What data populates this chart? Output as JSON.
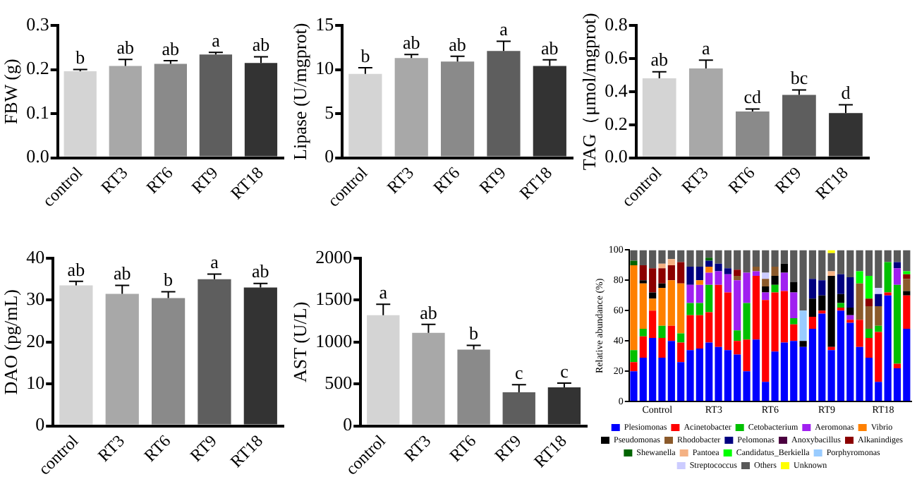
{
  "chart_data": [
    {
      "type": "bar",
      "ylabel": "FBW (g)",
      "categories": [
        "control",
        "RT3",
        "RT6",
        "RT9",
        "RT18"
      ],
      "values": [
        0.196,
        0.208,
        0.213,
        0.234,
        0.215
      ],
      "errors": [
        0.004,
        0.015,
        0.007,
        0.005,
        0.014
      ],
      "value_labels": [
        "b",
        "ab",
        "ab",
        "a",
        "ab"
      ],
      "colors": [
        "#d4d4d4",
        "#a8a8a8",
        "#8a8a8a",
        "#5e5e5e",
        "#333333"
      ],
      "ylim": [
        0,
        0.3
      ],
      "yticks": [
        {
          "value": 0,
          "label": "0.0"
        },
        0.1,
        0.2,
        0.3
      ]
    },
    {
      "type": "bar",
      "ylabel": "Lipase (U/mgprot)",
      "categories": [
        "control",
        "RT3",
        "RT6",
        "RT9",
        "RT18"
      ],
      "values": [
        9.5,
        11.3,
        10.9,
        12.1,
        10.4
      ],
      "errors": [
        0.7,
        0.4,
        0.6,
        1.1,
        0.7
      ],
      "value_labels": [
        "b",
        "ab",
        "ab",
        "a",
        "ab"
      ],
      "colors": [
        "#d4d4d4",
        "#a8a8a8",
        "#8a8a8a",
        "#5e5e5e",
        "#333333"
      ],
      "ylim": [
        0,
        15
      ],
      "yticks": [
        0,
        5,
        10,
        15
      ]
    },
    {
      "type": "bar",
      "ylabel": "TAG（μmol/mgprot)",
      "categories": [
        "control",
        "RT3",
        "RT6",
        "RT9",
        "RT18"
      ],
      "values": [
        0.48,
        0.54,
        0.28,
        0.38,
        0.27
      ],
      "errors": [
        0.04,
        0.05,
        0.015,
        0.03,
        0.05
      ],
      "value_labels": [
        "ab",
        "a",
        "cd",
        "bc",
        "d"
      ],
      "colors": [
        "#d4d4d4",
        "#a8a8a8",
        "#8a8a8a",
        "#5e5e5e",
        "#333333"
      ],
      "ylim": [
        0,
        0.8
      ],
      "yticks": [
        {
          "value": 0,
          "label": "0.0"
        },
        0.2,
        0.4,
        0.6,
        0.8
      ]
    },
    {
      "type": "bar",
      "ylabel": "DAO (pg/mL)",
      "categories": [
        "control",
        "RT3",
        "RT6",
        "RT9",
        "RT18"
      ],
      "values": [
        33.5,
        31.5,
        30.5,
        35,
        33
      ],
      "errors": [
        1,
        2,
        1.5,
        1.2,
        1
      ],
      "value_labels": [
        "ab",
        "ab",
        "b",
        "a",
        "ab"
      ],
      "colors": [
        "#d4d4d4",
        "#a8a8a8",
        "#8a8a8a",
        "#5e5e5e",
        "#333333"
      ],
      "ylim": [
        0,
        40
      ],
      "yticks": [
        0,
        10,
        20,
        30,
        40
      ]
    },
    {
      "type": "bar",
      "ylabel": "AST (U/L)",
      "categories": [
        "control",
        "RT3",
        "RT6",
        "RT9",
        "RT18"
      ],
      "values": [
        1320,
        1110,
        910,
        400,
        460
      ],
      "errors": [
        130,
        100,
        50,
        90,
        50
      ],
      "value_labels": [
        "a",
        "ab",
        "b",
        "c",
        "c"
      ],
      "colors": [
        "#d4d4d4",
        "#a8a8a8",
        "#8a8a8a",
        "#5e5e5e",
        "#333333"
      ],
      "ylim": [
        0,
        2000
      ],
      "yticks": [
        0,
        500,
        1000,
        1500,
        2000
      ]
    },
    {
      "type": "bar",
      "stacked": true,
      "legend": "bottom",
      "ylabel": "Relative abundance (%)",
      "ylim": [
        0,
        100
      ],
      "yticks": [
        0,
        20,
        40,
        60,
        80,
        100
      ],
      "categories": [
        null,
        null,
        "Control",
        null,
        null,
        null,
        null,
        null,
        "RT3",
        null,
        null,
        null,
        null,
        null,
        "RT6",
        null,
        null,
        null,
        null,
        null,
        "RT9",
        null,
        null,
        null,
        null,
        null,
        "RT18",
        null,
        null,
        null
      ],
      "series": [
        {
          "name": "Plesiomonas",
          "color": "#0000ff",
          "values": [
            20,
            29,
            42,
            29,
            40,
            26,
            34,
            35,
            39,
            36,
            34,
            31,
            20,
            41,
            13,
            33,
            39,
            40,
            36,
            48,
            58,
            34,
            60,
            52,
            36,
            29,
            13,
            70,
            22,
            48
          ]
        },
        {
          "name": "Acinetobacter",
          "color": "#ff0000",
          "values": [
            6,
            14,
            18,
            13,
            10,
            13,
            23,
            22,
            20,
            41,
            38,
            9,
            21,
            42,
            54,
            39,
            34,
            11,
            0,
            8,
            2,
            2,
            2,
            2,
            18,
            13,
            33,
            2,
            3,
            22
          ]
        },
        {
          "name": "Cetobacterium",
          "color": "#00c000",
          "values": [
            8,
            5,
            0,
            8,
            0,
            6,
            8,
            8,
            18,
            0,
            0,
            7,
            24,
            0,
            0,
            5,
            0,
            4,
            0,
            0,
            0,
            0,
            3,
            0,
            0,
            6,
            4,
            20,
            52,
            0
          ]
        },
        {
          "name": "Aeromonas",
          "color": "#a020f0",
          "values": [
            0,
            0,
            0,
            0,
            0,
            0,
            12,
            12,
            8,
            9,
            12,
            33,
            20,
            3,
            5,
            0,
            12,
            17,
            0,
            0,
            0,
            0,
            0,
            3,
            0,
            0,
            0,
            0,
            11,
            0
          ]
        },
        {
          "name": "Vibrio",
          "color": "#ff8000",
          "values": [
            56,
            30,
            8,
            25,
            30,
            33,
            0,
            3,
            4,
            0,
            0,
            0,
            0,
            0,
            0,
            0,
            0,
            0,
            0,
            0,
            0,
            0,
            0,
            0,
            0,
            0,
            0,
            0,
            0,
            0
          ]
        },
        {
          "name": "Pseudomonas",
          "color": "#000000",
          "values": [
            0,
            2,
            4,
            3,
            0,
            0,
            0,
            0,
            0,
            0,
            0,
            0,
            0,
            0,
            4,
            6,
            6,
            7,
            4,
            12,
            10,
            47,
            6,
            5,
            0,
            0,
            0,
            0,
            0,
            3
          ]
        },
        {
          "name": "Rhodobacter",
          "color": "#8b5a2b",
          "values": [
            0,
            0,
            0,
            0,
            0,
            0,
            0,
            0,
            0,
            0,
            0,
            3,
            0,
            3,
            5,
            6,
            0,
            0,
            0,
            0,
            0,
            0,
            0,
            0,
            24,
            15,
            13,
            0,
            0,
            8
          ]
        },
        {
          "name": "Pelomonas",
          "color": "#000080",
          "values": [
            0,
            0,
            0,
            0,
            0,
            0,
            12,
            9,
            4,
            5,
            4,
            0,
            0,
            0,
            0,
            0,
            0,
            0,
            0,
            13,
            10,
            0,
            13,
            20,
            0,
            0,
            8,
            0,
            4,
            0
          ]
        },
        {
          "name": "Anoxybacillus",
          "color": "#4b0040",
          "values": [
            0,
            0,
            0,
            0,
            0,
            0,
            0,
            0,
            0,
            0,
            0,
            0,
            0,
            0,
            0,
            0,
            0,
            0,
            0,
            0,
            0,
            0,
            0,
            0,
            0,
            0,
            0,
            0,
            0,
            0
          ]
        },
        {
          "name": "Alkanindiges",
          "color": "#8b0000",
          "values": [
            0,
            10,
            16,
            10,
            10,
            14,
            0,
            0,
            0,
            0,
            0,
            4,
            0,
            0,
            0,
            0,
            0,
            0,
            0,
            0,
            0,
            0,
            0,
            0,
            0,
            5,
            0,
            0,
            0,
            3
          ]
        },
        {
          "name": "Shewanella",
          "color": "#006400",
          "values": [
            3,
            0,
            0,
            0,
            0,
            0,
            0,
            0,
            2,
            0,
            0,
            0,
            0,
            0,
            0,
            0,
            0,
            0,
            0,
            0,
            0,
            0,
            0,
            0,
            0,
            0,
            0,
            0,
            0,
            0
          ]
        },
        {
          "name": "Pantoea",
          "color": "#f4b183",
          "values": [
            0,
            0,
            0,
            3,
            4,
            0,
            0,
            0,
            0,
            0,
            0,
            0,
            0,
            0,
            0,
            0,
            0,
            0,
            0,
            0,
            0,
            3,
            0,
            0,
            0,
            0,
            0,
            0,
            0,
            0
          ]
        },
        {
          "name": "Candidatus_Berkiella",
          "color": "#00ff00",
          "values": [
            0,
            0,
            0,
            0,
            0,
            0,
            0,
            0,
            0,
            0,
            0,
            0,
            0,
            0,
            0,
            0,
            0,
            0,
            0,
            0,
            0,
            0,
            0,
            0,
            8,
            15,
            0,
            0,
            0,
            2
          ]
        },
        {
          "name": "Porphyromonas",
          "color": "#99ccff",
          "values": [
            0,
            0,
            0,
            0,
            0,
            0,
            0,
            0,
            0,
            0,
            0,
            0,
            0,
            0,
            0,
            0,
            0,
            0,
            20,
            0,
            0,
            0,
            0,
            0,
            0,
            0,
            0,
            0,
            0,
            0
          ]
        },
        {
          "name": "Streptococcus",
          "color": "#ccccff",
          "values": [
            0,
            0,
            0,
            0,
            0,
            0,
            0,
            0,
            0,
            0,
            0,
            0,
            0,
            0,
            4,
            0,
            0,
            0,
            0,
            0,
            0,
            0,
            0,
            0,
            0,
            0,
            4,
            0,
            0,
            0
          ]
        },
        {
          "name": "Others",
          "color": "#595959",
          "values": [
            7,
            10,
            12,
            9,
            6,
            8,
            11,
            11,
            5,
            9,
            12,
            13,
            15,
            11,
            15,
            11,
            9,
            21,
            40,
            19,
            20,
            12,
            16,
            18,
            14,
            17,
            25,
            8,
            8,
            14
          ]
        },
        {
          "name": "Unknown",
          "color": "#ffff00",
          "values": [
            0,
            0,
            0,
            0,
            0,
            0,
            0,
            0,
            0,
            0,
            0,
            0,
            0,
            0,
            0,
            0,
            0,
            0,
            0,
            0,
            0,
            2,
            0,
            0,
            0,
            0,
            0,
            0,
            0,
            0
          ]
        }
      ]
    }
  ]
}
